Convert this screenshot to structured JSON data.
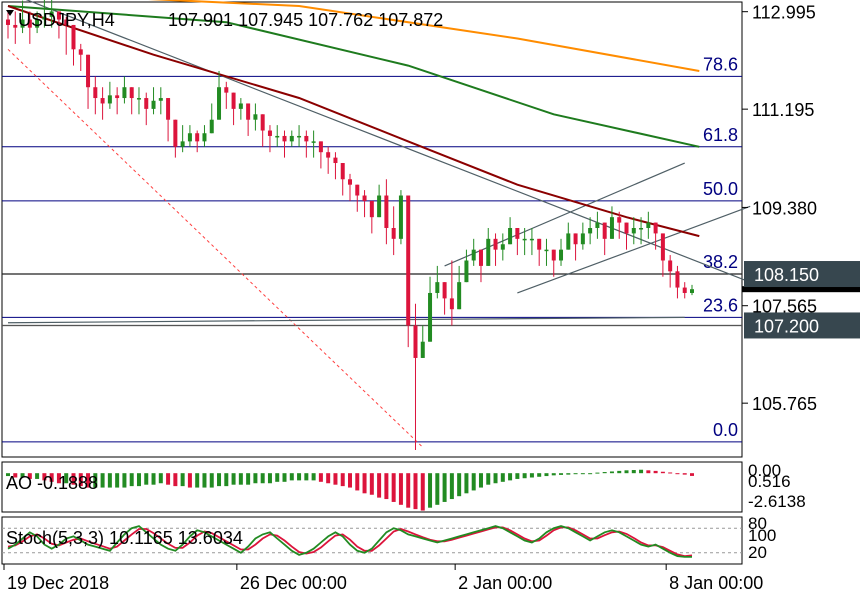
{
  "header": {
    "symbol_label": "USDJPY,H4",
    "ohlc_label": "107.901 107.945 107.762 107.872"
  },
  "colors": {
    "bull": "#228B22",
    "bear": "#DC143C",
    "ma_fast": "#8B0000",
    "ma_mid": "#1E7B1E",
    "ma_slow": "#FF8C00",
    "fib": "#000080",
    "trend": "#4F5F66",
    "fan": "#FF4040"
  },
  "price_axis": {
    "ticks": [
      "112.995",
      "111.195",
      "109.380",
      "107.565",
      "105.765"
    ],
    "badges": [
      {
        "label": "108.150"
      },
      {
        "label": "107.200"
      }
    ]
  },
  "fibonacci": {
    "levels": [
      "78.6",
      "61.8",
      "50.0",
      "38.2",
      "23.6",
      "0.0"
    ]
  },
  "ao": {
    "label": "AO -0.1888",
    "ticks": [
      "0.00",
      "0.516",
      "-2.6138"
    ]
  },
  "stoch": {
    "label": "Stoch(5,3,3) 10.1165 13.6034",
    "ticks": [
      "80",
      "100",
      "20"
    ]
  },
  "time_axis": {
    "labels": [
      "19 Dec 2018",
      "26 Dec 00:00",
      "2 Jan 00:00",
      "8 Jan 00:00"
    ]
  },
  "chart_data": {
    "type": "candlestick",
    "symbol": "USDJPY",
    "timeframe": "H4",
    "last_bar": {
      "open": 107.901,
      "high": 107.945,
      "low": 107.762,
      "close": 107.872
    },
    "price_range": [
      104.9,
      113.1
    ],
    "closes": [
      112.75,
      112.7,
      112.85,
      112.7,
      112.85,
      112.9,
      113.0,
      112.85,
      112.75,
      112.3,
      112.2,
      111.6,
      111.4,
      111.3,
      111.45,
      111.4,
      111.6,
      111.4,
      111.4,
      111.2,
      111.35,
      111.4,
      111.0,
      110.5,
      110.6,
      110.75,
      110.6,
      110.75,
      111.0,
      111.6,
      111.5,
      111.2,
      111.3,
      111.0,
      111.1,
      110.8,
      110.7,
      110.7,
      110.6,
      110.7,
      110.7,
      110.6,
      110.6,
      110.4,
      110.3,
      110.2,
      109.9,
      109.8,
      109.6,
      109.5,
      109.2,
      109.6,
      109.0,
      108.8,
      109.6,
      107.2,
      106.6,
      106.9,
      107.8,
      108.0,
      107.7,
      107.5,
      108.0,
      108.4,
      108.6,
      108.3,
      108.8,
      108.6,
      108.7,
      109.0,
      108.8,
      108.8,
      108.8,
      108.6,
      108.6,
      108.4,
      108.6,
      108.9,
      108.7,
      108.9,
      109.0,
      109.1,
      108.8,
      109.2,
      109.1,
      108.9,
      109.0,
      109.0,
      109.1,
      108.9,
      108.4,
      108.2,
      107.9,
      107.8,
      107.87
    ],
    "highs": [
      113.0,
      113.0,
      113.2,
      113.0,
      113.0,
      113.3,
      113.3,
      113.0,
      112.9,
      112.5,
      112.4,
      111.8,
      111.8,
      111.6,
      111.7,
      111.6,
      111.8,
      111.6,
      111.6,
      111.5,
      111.6,
      111.6,
      111.3,
      110.8,
      110.9,
      110.9,
      110.8,
      110.9,
      111.3,
      111.9,
      111.7,
      111.5,
      111.4,
      111.2,
      111.3,
      111.0,
      110.9,
      110.9,
      110.8,
      110.8,
      110.9,
      110.8,
      110.8,
      110.6,
      110.5,
      110.4,
      110.1,
      110.0,
      109.8,
      109.7,
      109.4,
      109.8,
      109.9,
      109.4,
      109.7,
      109.6,
      107.6,
      107.2,
      108.1,
      108.3,
      108.0,
      108.4,
      108.3,
      108.6,
      108.8,
      108.6,
      109.0,
      108.9,
      108.9,
      109.2,
      109.0,
      109.0,
      109.0,
      108.8,
      108.8,
      108.6,
      108.8,
      109.1,
      108.9,
      109.1,
      109.2,
      109.3,
      109.1,
      109.4,
      109.3,
      109.1,
      109.2,
      109.2,
      109.3,
      109.1,
      108.9,
      108.5,
      108.3,
      108.0,
      107.95
    ],
    "lows": [
      112.5,
      112.4,
      112.6,
      112.4,
      112.6,
      112.7,
      112.7,
      112.5,
      112.2,
      112.0,
      111.9,
      111.2,
      111.1,
      111.0,
      111.2,
      111.1,
      111.3,
      111.1,
      111.1,
      110.9,
      111.1,
      111.1,
      110.6,
      110.3,
      110.4,
      110.5,
      110.4,
      110.5,
      110.8,
      111.3,
      111.2,
      110.9,
      111.0,
      110.7,
      110.8,
      110.5,
      110.4,
      110.5,
      110.3,
      110.5,
      110.5,
      110.3,
      110.3,
      110.1,
      110.0,
      109.9,
      109.6,
      109.5,
      109.3,
      109.2,
      108.9,
      109.2,
      108.7,
      108.5,
      108.7,
      106.8,
      104.9,
      106.6,
      107.3,
      107.7,
      107.4,
      107.2,
      107.6,
      108.1,
      108.3,
      108.0,
      108.5,
      108.3,
      108.4,
      108.7,
      108.5,
      108.5,
      108.5,
      108.3,
      108.3,
      108.1,
      108.3,
      108.6,
      108.4,
      108.6,
      108.7,
      108.8,
      108.5,
      108.9,
      108.8,
      108.6,
      108.7,
      108.7,
      108.8,
      108.6,
      108.1,
      107.9,
      107.7,
      107.7,
      107.76
    ],
    "fib_levels": [
      {
        "label": "78.6",
        "price": 111.8
      },
      {
        "label": "61.8",
        "price": 110.5
      },
      {
        "label": "50.0",
        "price": 109.5
      },
      {
        "label": "38.2",
        "price": 108.15
      },
      {
        "label": "23.6",
        "price": 107.35
      },
      {
        "label": "0.0",
        "price": 105.05
      }
    ],
    "horizontal_levels": [
      108.15,
      107.2
    ],
    "ma_fast": [
      [
        0,
        113.1
      ],
      [
        20,
        112.2
      ],
      [
        40,
        111.4
      ],
      [
        55,
        110.6
      ],
      [
        70,
        109.8
      ],
      [
        85,
        109.2
      ],
      [
        95,
        108.85
      ]
    ],
    "ma_mid": [
      [
        0,
        113.1
      ],
      [
        30,
        112.8
      ],
      [
        55,
        112.0
      ],
      [
        75,
        111.1
      ],
      [
        95,
        110.5
      ]
    ],
    "ma_slow": [
      [
        0,
        113.35
      ],
      [
        40,
        113.1
      ],
      [
        70,
        112.5
      ],
      [
        95,
        111.9
      ]
    ],
    "ao_values": [
      -0.2,
      -0.3,
      -0.3,
      -0.4,
      -0.4,
      -0.5,
      -0.6,
      -0.7,
      -0.7,
      -0.8,
      -0.9,
      -1.0,
      -1.0,
      -1.0,
      -1.0,
      -1.0,
      -1.0,
      -0.9,
      -0.9,
      -0.8,
      -0.8,
      -0.7,
      -0.8,
      -0.9,
      -0.9,
      -1.0,
      -1.0,
      -1.0,
      -1.0,
      -0.9,
      -0.9,
      -0.8,
      -0.8,
      -0.8,
      -0.7,
      -0.7,
      -0.7,
      -0.6,
      -0.6,
      -0.5,
      -0.5,
      -0.5,
      -0.5,
      -0.6,
      -0.7,
      -0.8,
      -0.9,
      -1.0,
      -1.2,
      -1.4,
      -1.5,
      -1.7,
      -1.8,
      -2.0,
      -2.2,
      -2.4,
      -2.5,
      -2.6,
      -2.4,
      -2.2,
      -2.0,
      -1.8,
      -1.6,
      -1.4,
      -1.2,
      -1.0,
      -0.8,
      -0.7,
      -0.6,
      -0.5,
      -0.4,
      -0.35,
      -0.3,
      -0.25,
      -0.2,
      -0.15,
      -0.12,
      -0.1,
      -0.06,
      -0.03,
      0.0,
      0.04,
      0.08,
      0.12,
      0.16,
      0.2,
      0.22,
      0.24,
      0.2,
      0.16,
      0.1,
      0.05,
      -0.02,
      -0.1,
      -0.19
    ],
    "stoch_main": [
      30,
      40,
      55,
      70,
      60,
      40,
      30,
      40,
      55,
      60,
      50,
      40,
      35,
      30,
      25,
      45,
      65,
      80,
      85,
      70,
      55,
      40,
      30,
      25,
      40,
      60,
      75,
      70,
      60,
      50,
      40,
      30,
      20,
      35,
      55,
      65,
      70,
      55,
      40,
      25,
      15,
      20,
      30,
      45,
      60,
      70,
      60,
      40,
      25,
      20,
      30,
      50,
      70,
      80,
      75,
      65,
      60,
      55,
      50,
      45,
      50,
      55,
      60,
      65,
      70,
      75,
      80,
      85,
      80,
      70,
      60,
      50,
      45,
      55,
      70,
      80,
      85,
      80,
      70,
      60,
      50,
      60,
      70,
      75,
      70,
      60,
      50,
      40,
      35,
      40,
      30,
      20,
      12,
      10,
      10
    ],
    "stoch_signal": [
      35,
      38,
      48,
      60,
      65,
      55,
      42,
      38,
      45,
      52,
      55,
      48,
      42,
      36,
      30,
      35,
      50,
      65,
      78,
      78,
      68,
      55,
      42,
      32,
      32,
      45,
      62,
      72,
      68,
      58,
      48,
      38,
      28,
      28,
      40,
      55,
      65,
      62,
      50,
      35,
      22,
      18,
      22,
      33,
      48,
      62,
      65,
      52,
      35,
      25,
      25,
      38,
      55,
      72,
      78,
      72,
      65,
      58,
      52,
      48,
      48,
      52,
      57,
      62,
      67,
      72,
      77,
      82,
      82,
      75,
      65,
      55,
      48,
      50,
      62,
      75,
      82,
      82,
      75,
      65,
      55,
      55,
      63,
      70,
      72,
      66,
      56,
      45,
      38,
      38,
      34,
      25,
      16,
      12,
      13.6
    ]
  }
}
